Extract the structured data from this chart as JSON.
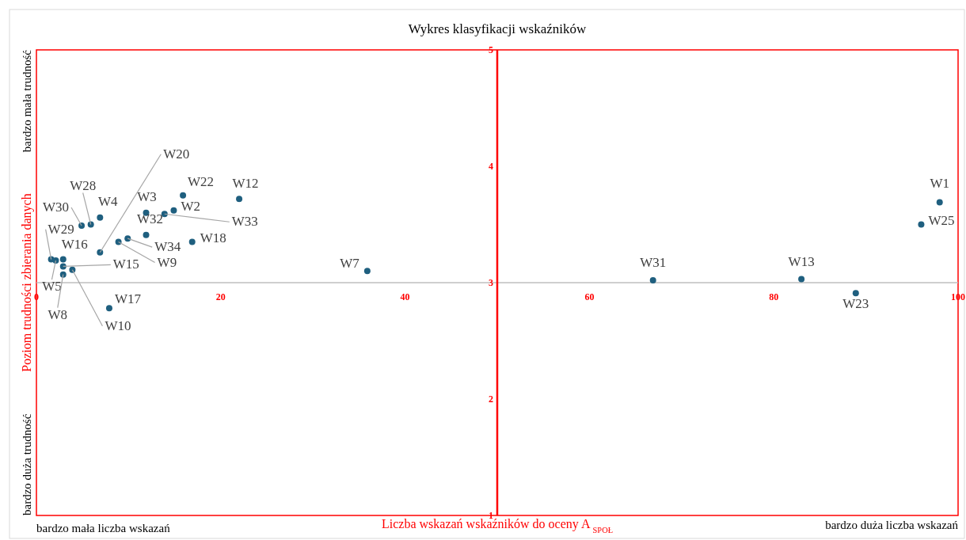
{
  "chart_data": {
    "type": "scatter",
    "title": "Wykres klasyfikacji  wskaźników",
    "xlabel": "Liczba wskazań wskaźników do oceny A $_{SPOŁ}$",
    "ylabel": "Poziom trudności zbierania danych",
    "xlim": [
      0,
      100
    ],
    "ylim": [
      1,
      5
    ],
    "xticks": [
      0,
      20,
      40,
      60,
      80,
      100
    ],
    "yticks": [
      1,
      2,
      3,
      4,
      5
    ],
    "marker": "circle",
    "series": [
      {
        "color": "#1f5f7f",
        "x": [
          98.0,
          96.0,
          35.9,
          66.9,
          83.0,
          88.9,
          15.9,
          22.0,
          11.9,
          14.9,
          13.9,
          6.9,
          5.9,
          4.9,
          11.9,
          9.9,
          8.9,
          16.9,
          6.9,
          1.6,
          2.9,
          2.9,
          2.1,
          2.9,
          3.9,
          7.9
        ],
        "values": [
          3.69,
          3.5,
          3.1,
          3.02,
          3.03,
          2.91,
          3.75,
          3.72,
          3.6,
          3.62,
          3.59,
          3.56,
          3.5,
          3.49,
          3.41,
          3.38,
          3.35,
          3.35,
          3.26,
          3.2,
          3.2,
          3.14,
          3.19,
          3.07,
          3.11,
          2.78
        ]
      }
    ],
    "annotations": [
      "bardzo mała trudność",
      "bardzo duża trudność",
      "bardzo mała liczba wskazań",
      "bardzo duża liczba wskazań",
      {
        "text": "W1",
        "x": 98.0,
        "y": 3.69
      },
      {
        "text": "W25",
        "x": 96.0,
        "y": 3.5
      },
      {
        "text": "W7",
        "x": 35.9,
        "y": 3.1
      },
      {
        "text": "W31",
        "x": 66.9,
        "y": 3.02
      },
      {
        "text": "W13",
        "x": 83.0,
        "y": 3.03
      },
      {
        "text": "W23",
        "x": 88.9,
        "y": 2.91
      },
      {
        "text": "W22",
        "x": 15.9,
        "y": 3.75
      },
      {
        "text": "W12",
        "x": 22.0,
        "y": 3.72
      },
      {
        "text": "W3",
        "x": 11.9,
        "y": 3.6
      },
      {
        "text": "W2",
        "x": 14.9,
        "y": 3.62
      },
      {
        "text": "W33",
        "x": 13.9,
        "y": 3.59
      },
      {
        "text": "W4",
        "x": 6.9,
        "y": 3.56
      },
      {
        "text": "W28",
        "x": 5.9,
        "y": 3.5
      },
      {
        "text": "W30",
        "x": 4.9,
        "y": 3.49
      },
      {
        "text": "W32",
        "x": 11.9,
        "y": 3.41
      },
      {
        "text": "W34",
        "x": 9.9,
        "y": 3.38
      },
      {
        "text": "W9",
        "x": 8.9,
        "y": 3.35
      },
      {
        "text": "W18",
        "x": 16.9,
        "y": 3.35
      },
      {
        "text": "W20",
        "x": 6.9,
        "y": 3.26
      },
      {
        "text": "W29",
        "x": 1.6,
        "y": 3.2
      },
      {
        "text": "W16",
        "x": 2.9,
        "y": 3.2
      },
      {
        "text": "W15",
        "x": 2.9,
        "y": 3.14
      },
      {
        "text": "W5",
        "x": 2.1,
        "y": 3.19
      },
      {
        "text": "W8",
        "x": 2.9,
        "y": 3.07
      },
      {
        "text": "W10",
        "x": 3.9,
        "y": 3.11
      },
      {
        "text": "W17",
        "x": 7.9,
        "y": 2.78
      }
    ]
  }
}
